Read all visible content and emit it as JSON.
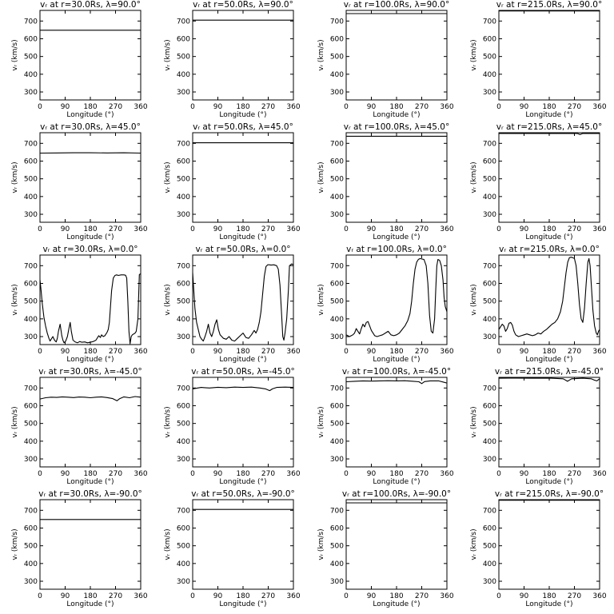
{
  "shared": {
    "xlabel": "Longitude (°)",
    "ylabel": "vᵣ (km/s)",
    "x_ticks": [
      0,
      90,
      180,
      270,
      360
    ],
    "y_ticks": [
      300,
      400,
      500,
      600,
      700
    ],
    "xlim": [
      0,
      360
    ],
    "ylim": [
      255,
      760
    ]
  },
  "chart_data": [
    {
      "type": "line",
      "title": "vᵣ at r=30.0Rs, λ=90.0°",
      "xlabel": "Longitude (°)",
      "ylabel": "vᵣ (km/s)",
      "xlim": [
        0,
        360
      ],
      "ylim": [
        255,
        760
      ],
      "series": [
        {
          "x": [
            0,
            360
          ],
          "y": [
            648,
            648
          ]
        }
      ]
    },
    {
      "type": "line",
      "title": "vᵣ at r=50.0Rs, λ=90.0°",
      "xlabel": "Longitude (°)",
      "ylabel": "vᵣ (km/s)",
      "xlim": [
        0,
        360
      ],
      "ylim": [
        255,
        760
      ],
      "series": [
        {
          "x": [
            0,
            360
          ],
          "y": [
            705,
            705
          ]
        }
      ]
    },
    {
      "type": "line",
      "title": "vᵣ at r=100.0Rs, λ=90.0°",
      "xlabel": "Longitude (°)",
      "ylabel": "vᵣ (km/s)",
      "xlim": [
        0,
        360
      ],
      "ylim": [
        255,
        760
      ],
      "series": [
        {
          "x": [
            0,
            360
          ],
          "y": [
            742,
            742
          ]
        }
      ]
    },
    {
      "type": "line",
      "title": "vᵣ at r=215.0Rs, λ=90.0°",
      "xlabel": "Longitude (°)",
      "ylabel": "vᵣ (km/s)",
      "xlim": [
        0,
        360
      ],
      "ylim": [
        255,
        760
      ],
      "series": [
        {
          "x": [
            0,
            360
          ],
          "y": [
            757,
            757
          ]
        }
      ]
    },
    {
      "type": "line",
      "title": "vᵣ at r=30.0Rs, λ=45.0°",
      "xlabel": "Longitude (°)",
      "ylabel": "vᵣ (km/s)",
      "xlim": [
        0,
        360
      ],
      "ylim": [
        255,
        760
      ],
      "series": [
        {
          "x": [
            0,
            60,
            120,
            180,
            240,
            300,
            360
          ],
          "y": [
            645,
            646,
            647,
            647,
            646,
            647,
            645
          ]
        }
      ]
    },
    {
      "type": "line",
      "title": "vᵣ at r=50.0Rs, λ=45.0°",
      "xlabel": "Longitude (°)",
      "ylabel": "vᵣ (km/s)",
      "xlim": [
        0,
        360
      ],
      "ylim": [
        255,
        760
      ],
      "series": [
        {
          "x": [
            0,
            360
          ],
          "y": [
            703,
            703
          ]
        }
      ]
    },
    {
      "type": "line",
      "title": "vᵣ at r=100.0Rs, λ=45.0°",
      "xlabel": "Longitude (°)",
      "ylabel": "vᵣ (km/s)",
      "xlim": [
        0,
        360
      ],
      "ylim": [
        255,
        760
      ],
      "series": [
        {
          "x": [
            0,
            360
          ],
          "y": [
            740,
            740
          ]
        }
      ]
    },
    {
      "type": "line",
      "title": "vᵣ at r=215.0Rs, λ=45.0°",
      "xlabel": "Longitude (°)",
      "ylabel": "vᵣ (km/s)",
      "xlim": [
        0,
        360
      ],
      "ylim": [
        255,
        760
      ],
      "series": [
        {
          "x": [
            0,
            280,
            290,
            300,
            360
          ],
          "y": [
            756,
            756,
            750,
            756,
            756
          ]
        }
      ]
    },
    {
      "type": "line",
      "title": "vᵣ at r=30.0Rs, λ=0.0°",
      "xlabel": "Longitude (°)",
      "ylabel": "vᵣ (km/s)",
      "xlim": [
        0,
        360
      ],
      "ylim": [
        255,
        760
      ],
      "series": [
        {
          "x": [
            0,
            4,
            8,
            14,
            20,
            26,
            32,
            36,
            40,
            46,
            52,
            58,
            62,
            66,
            72,
            78,
            82,
            86,
            92,
            98,
            104,
            108,
            112,
            118,
            126,
            134,
            142,
            150,
            160,
            170,
            180,
            190,
            200,
            210,
            216,
            220,
            226,
            232,
            236,
            240,
            244,
            248,
            252,
            256,
            262,
            268,
            274,
            280,
            290,
            300,
            306,
            310,
            314,
            318,
            322,
            326,
            330,
            340,
            344,
            350,
            355,
            360
          ],
          "y": [
            620,
            560,
            490,
            410,
            360,
            320,
            290,
            275,
            285,
            300,
            280,
            270,
            290,
            330,
            370,
            305,
            280,
            265,
            275,
            300,
            350,
            380,
            330,
            280,
            270,
            265,
            272,
            268,
            270,
            265,
            268,
            272,
            280,
            305,
            295,
            310,
            300,
            305,
            315,
            325,
            340,
            380,
            470,
            560,
            630,
            645,
            648,
            645,
            648,
            648,
            646,
            630,
            500,
            330,
            260,
            300,
            310,
            320,
            330,
            400,
            650,
            655
          ]
        }
      ]
    },
    {
      "type": "line",
      "title": "vᵣ at r=50.0Rs, λ=0.0°",
      "xlabel": "Longitude (°)",
      "ylabel": "vᵣ (km/s)",
      "xlim": [
        0,
        360
      ],
      "ylim": [
        255,
        760
      ],
      "series": [
        {
          "x": [
            0,
            4,
            8,
            14,
            20,
            26,
            32,
            38,
            44,
            50,
            56,
            62,
            68,
            74,
            80,
            86,
            92,
            98,
            104,
            110,
            120,
            130,
            140,
            150,
            160,
            170,
            180,
            190,
            200,
            210,
            220,
            226,
            232,
            238,
            244,
            250,
            256,
            262,
            268,
            274,
            280,
            290,
            300,
            306,
            312,
            318,
            322,
            326,
            330,
            336,
            342,
            346,
            350,
            354,
            360
          ],
          "y": [
            660,
            560,
            460,
            380,
            340,
            300,
            285,
            275,
            300,
            330,
            370,
            320,
            300,
            330,
            370,
            395,
            340,
            310,
            300,
            290,
            285,
            300,
            280,
            275,
            290,
            305,
            320,
            295,
            290,
            310,
            335,
            320,
            340,
            380,
            440,
            540,
            640,
            695,
            705,
            705,
            703,
            705,
            700,
            680,
            590,
            420,
            300,
            280,
            320,
            400,
            560,
            700,
            705,
            710,
            705
          ]
        }
      ]
    },
    {
      "type": "line",
      "title": "vᵣ at r=100.0Rs, λ=0.0°",
      "xlabel": "Longitude (°)",
      "ylabel": "vᵣ (km/s)",
      "xlim": [
        0,
        360
      ],
      "ylim": [
        255,
        760
      ],
      "series": [
        {
          "x": [
            0,
            6,
            12,
            18,
            24,
            30,
            36,
            42,
            48,
            54,
            60,
            66,
            72,
            78,
            84,
            90,
            96,
            102,
            110,
            120,
            130,
            140,
            150,
            160,
            170,
            180,
            190,
            200,
            210,
            220,
            228,
            234,
            240,
            246,
            252,
            258,
            264,
            270,
            278,
            286,
            292,
            298,
            304,
            310,
            316,
            320,
            324,
            328,
            334,
            340,
            346,
            350,
            354,
            360
          ],
          "y": [
            310,
            305,
            300,
            305,
            310,
            320,
            345,
            330,
            315,
            345,
            370,
            355,
            380,
            385,
            360,
            335,
            320,
            305,
            300,
            305,
            310,
            320,
            330,
            310,
            305,
            310,
            320,
            340,
            360,
            390,
            430,
            500,
            600,
            680,
            720,
            735,
            740,
            738,
            735,
            700,
            600,
            420,
            330,
            320,
            400,
            560,
            700,
            735,
            730,
            700,
            620,
            520,
            470,
            440
          ]
        }
      ]
    },
    {
      "type": "line",
      "title": "vᵣ at r=215.0Rs, λ=0.0°",
      "xlabel": "Longitude (°)",
      "ylabel": "vᵣ (km/s)",
      "xlim": [
        0,
        360
      ],
      "ylim": [
        255,
        760
      ],
      "series": [
        {
          "x": [
            0,
            6,
            12,
            18,
            24,
            30,
            36,
            42,
            48,
            54,
            60,
            70,
            80,
            90,
            100,
            110,
            120,
            130,
            140,
            150,
            160,
            170,
            180,
            190,
            200,
            210,
            220,
            228,
            234,
            240,
            246,
            252,
            258,
            264,
            270,
            276,
            282,
            288,
            294,
            300,
            306,
            312,
            318,
            322,
            326,
            330,
            336,
            342,
            348,
            352,
            356,
            360
          ],
          "y": [
            340,
            355,
            370,
            360,
            330,
            345,
            375,
            380,
            365,
            330,
            310,
            300,
            305,
            310,
            315,
            310,
            305,
            310,
            320,
            315,
            330,
            340,
            355,
            370,
            380,
            400,
            440,
            500,
            580,
            660,
            720,
            745,
            748,
            745,
            740,
            700,
            600,
            480,
            400,
            380,
            460,
            600,
            720,
            740,
            700,
            600,
            450,
            360,
            320,
            310,
            330,
            340
          ]
        }
      ]
    },
    {
      "type": "line",
      "title": "vᵣ at r=30.0Rs, λ=-45.0°",
      "xlabel": "Longitude (°)",
      "ylabel": "vᵣ (km/s)",
      "xlim": [
        0,
        360
      ],
      "ylim": [
        255,
        760
      ],
      "series": [
        {
          "x": [
            0,
            20,
            40,
            60,
            80,
            100,
            120,
            140,
            160,
            180,
            200,
            220,
            240,
            260,
            275,
            285,
            300,
            320,
            340,
            360
          ],
          "y": [
            638,
            645,
            648,
            647,
            650,
            648,
            646,
            649,
            648,
            645,
            648,
            650,
            646,
            640,
            628,
            640,
            650,
            645,
            652,
            648
          ]
        }
      ]
    },
    {
      "type": "line",
      "title": "vᵣ at r=50.0Rs, λ=-45.0°",
      "xlabel": "Longitude (°)",
      "ylabel": "vᵣ (km/s)",
      "xlim": [
        0,
        360
      ],
      "ylim": [
        255,
        760
      ],
      "series": [
        {
          "x": [
            0,
            30,
            60,
            90,
            120,
            150,
            180,
            210,
            240,
            260,
            275,
            285,
            300,
            330,
            360
          ],
          "y": [
            695,
            703,
            700,
            704,
            702,
            705,
            703,
            705,
            700,
            695,
            685,
            695,
            703,
            705,
            703
          ]
        }
      ]
    },
    {
      "type": "line",
      "title": "vᵣ at r=100.0Rs, λ=-45.0°",
      "xlabel": "Longitude (°)",
      "ylabel": "vᵣ (km/s)",
      "xlim": [
        0,
        360
      ],
      "ylim": [
        255,
        760
      ],
      "series": [
        {
          "x": [
            0,
            30,
            60,
            90,
            120,
            150,
            180,
            210,
            240,
            260,
            270,
            280,
            300,
            330,
            350,
            360
          ],
          "y": [
            735,
            738,
            740,
            739,
            740,
            741,
            740,
            741,
            738,
            735,
            725,
            736,
            740,
            740,
            732,
            728
          ]
        }
      ]
    },
    {
      "type": "line",
      "title": "vᵣ at r=215.0Rs, λ=-45.0°",
      "xlabel": "Longitude (°)",
      "ylabel": "vᵣ (km/s)",
      "xlim": [
        0,
        360
      ],
      "ylim": [
        255,
        760
      ],
      "series": [
        {
          "x": [
            0,
            60,
            120,
            180,
            230,
            245,
            260,
            300,
            330,
            340,
            350,
            360
          ],
          "y": [
            755,
            756,
            755,
            756,
            752,
            738,
            752,
            755,
            752,
            745,
            740,
            752
          ]
        }
      ]
    },
    {
      "type": "line",
      "title": "vᵣ at r=30.0Rs, λ=-90.0°",
      "xlabel": "Longitude (°)",
      "ylabel": "vᵣ (km/s)",
      "xlim": [
        0,
        360
      ],
      "ylim": [
        255,
        760
      ],
      "series": [
        {
          "x": [
            0,
            360
          ],
          "y": [
            648,
            648
          ]
        }
      ]
    },
    {
      "type": "line",
      "title": "vᵣ at r=50.0Rs, λ=-90.0°",
      "xlabel": "Longitude (°)",
      "ylabel": "vᵣ (km/s)",
      "xlim": [
        0,
        360
      ],
      "ylim": [
        255,
        760
      ],
      "series": [
        {
          "x": [
            0,
            360
          ],
          "y": [
            705,
            705
          ]
        }
      ]
    },
    {
      "type": "line",
      "title": "vᵣ at r=100.0Rs, λ=-90.0°",
      "xlabel": "Longitude (°)",
      "ylabel": "vᵣ (km/s)",
      "xlim": [
        0,
        360
      ],
      "ylim": [
        255,
        760
      ],
      "series": [
        {
          "x": [
            0,
            360
          ],
          "y": [
            742,
            742
          ]
        }
      ]
    },
    {
      "type": "line",
      "title": "vᵣ at r=215.0Rs, λ=-90.0°",
      "xlabel": "Longitude (°)",
      "ylabel": "vᵣ (km/s)",
      "xlim": [
        0,
        360
      ],
      "ylim": [
        255,
        760
      ],
      "series": [
        {
          "x": [
            0,
            360
          ],
          "y": [
            757,
            757
          ]
        }
      ]
    }
  ]
}
